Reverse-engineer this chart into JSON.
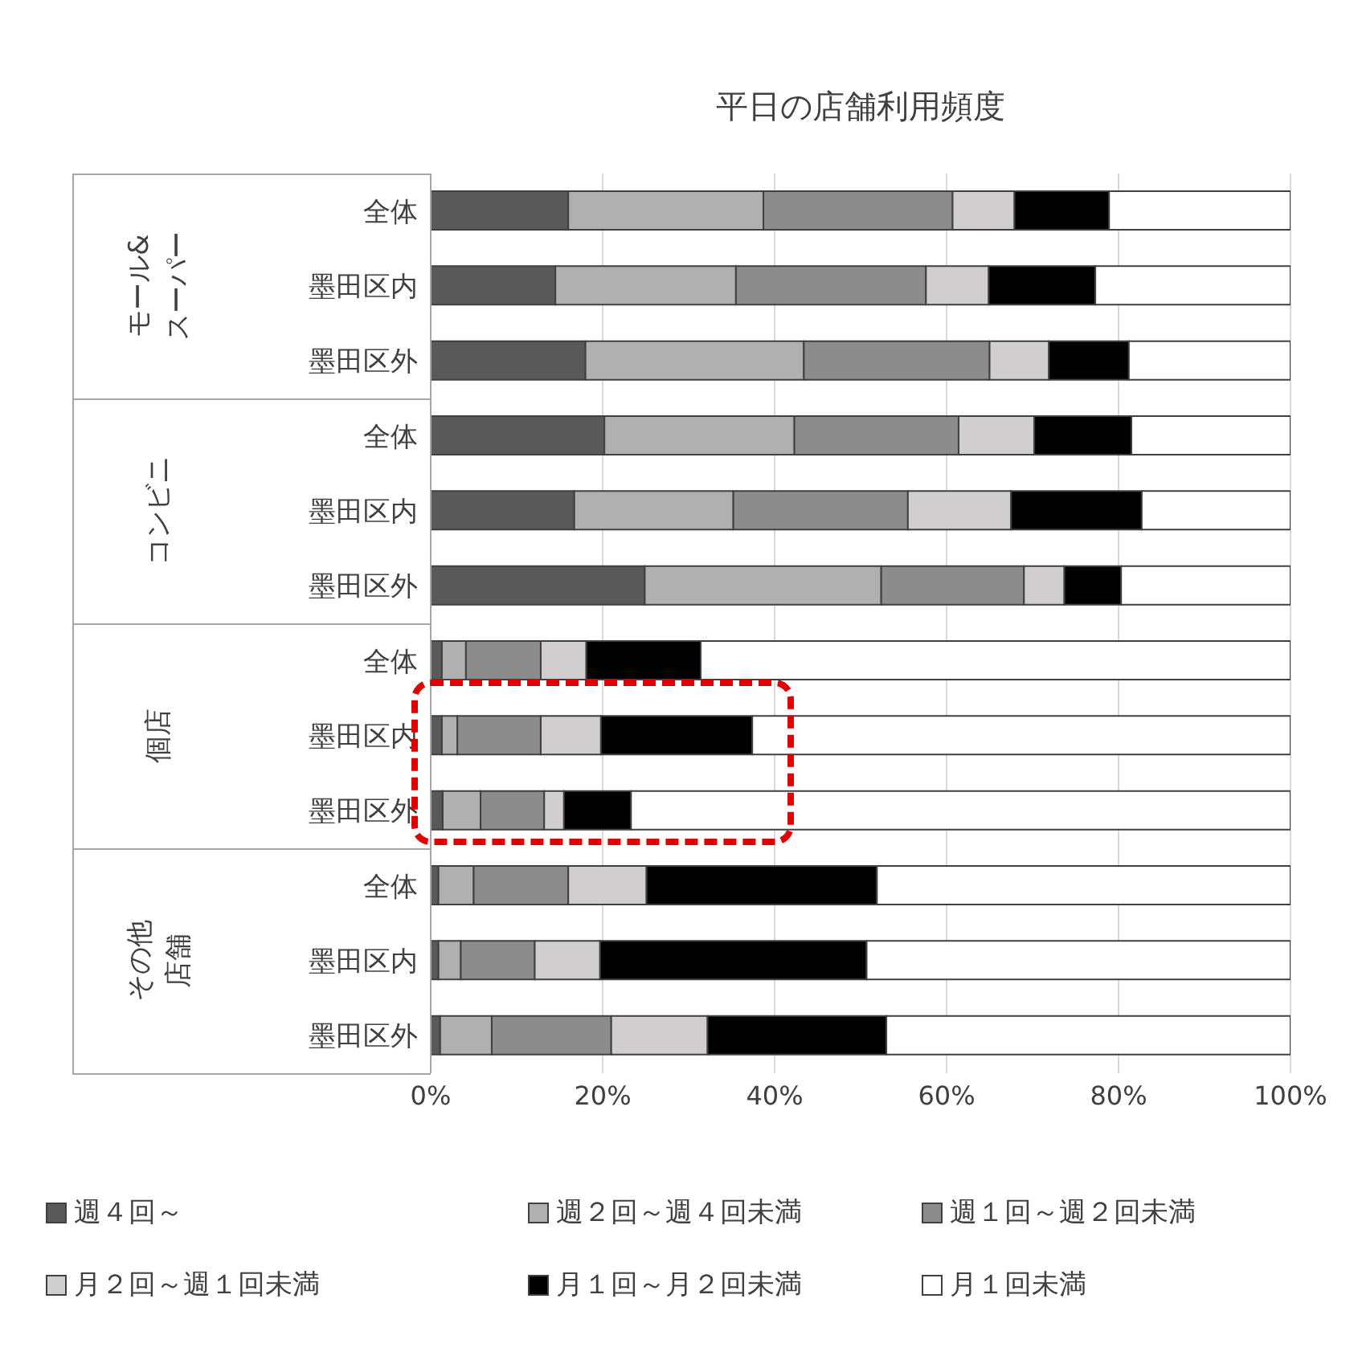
{
  "chart_data": {
    "type": "bar",
    "orientation": "horizontal",
    "stacked": true,
    "title": "平日の店舗利用頻度",
    "categories": [
      "全体",
      "墨田区内",
      "墨田区外",
      "全体",
      "墨田区内",
      "墨田区外",
      "全体",
      "墨田区内",
      "墨田区外",
      "全体",
      "墨田区内",
      "墨田区外"
    ],
    "series": [
      {
        "name": "週４回～",
        "color": "#595959",
        "values": [
          16,
          14.5,
          18,
          20.2,
          16.7,
          24.9,
          1.3,
          1.3,
          1.4,
          0.9,
          0.9,
          1.1
        ]
      },
      {
        "name": "週２回～週４回未満",
        "color": "#b0b0b0",
        "values": [
          22.7,
          21,
          25.4,
          22.1,
          18.5,
          27.5,
          2.8,
          1.8,
          4.4,
          4.1,
          2.6,
          6
        ]
      },
      {
        "name": "週１回～週２回未満",
        "color": "#8c8c8c",
        "values": [
          22,
          22.1,
          21.6,
          19.1,
          20.3,
          16.6,
          8.7,
          9.7,
          7.4,
          11,
          8.6,
          13.9
        ]
      },
      {
        "name": "月２回～週１回未満",
        "color": "#d0cece",
        "values": [
          7.2,
          7.3,
          6.9,
          8.8,
          12,
          4.7,
          5.3,
          7,
          2.3,
          9.1,
          7.6,
          11.2
        ]
      },
      {
        "name": "月１回～月２回未満",
        "color": "#000000",
        "values": [
          11,
          12.4,
          9.3,
          11.3,
          15.2,
          6.6,
          13.3,
          17.6,
          7.8,
          26.8,
          31,
          20.8
        ]
      },
      {
        "name": "月１回未満",
        "color": "#ffffff",
        "values": [
          21.1,
          22.7,
          18.8,
          18.5,
          17.3,
          19.7,
          68.6,
          62.6,
          76.7,
          48.1,
          49.3,
          47
        ]
      }
    ],
    "xlim": [
      0,
      100
    ],
    "xticks": [
      {
        "value": 0,
        "label": "0%"
      },
      {
        "value": 20,
        "label": "20%"
      },
      {
        "value": 40,
        "label": "40%"
      },
      {
        "value": 60,
        "label": "60%"
      },
      {
        "value": 80,
        "label": "80%"
      },
      {
        "value": 100,
        "label": "100%"
      }
    ],
    "annotations": [
      "モール&スーパー",
      "コンビニ",
      "個店",
      "その他店舗"
    ],
    "grid": "x",
    "legend": "bottom"
  }
}
